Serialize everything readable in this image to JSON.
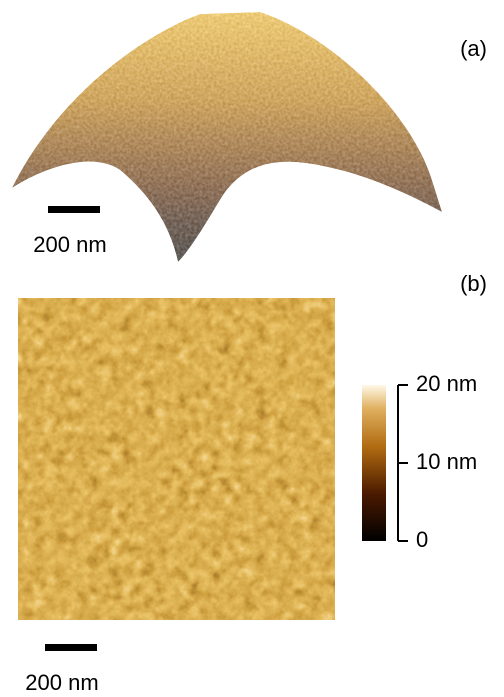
{
  "panels": {
    "a": {
      "label": "(a)",
      "scale_bar": "200 nm"
    },
    "b": {
      "label": "(b)",
      "scale_bar": "200 nm",
      "colorbar": {
        "lim": [
          0,
          20
        ],
        "ticks": [
          0,
          {
            "value": 10,
            "label": "10 nm"
          },
          {
            "value": 20,
            "label": "20 nm"
          }
        ]
      }
    }
  }
}
